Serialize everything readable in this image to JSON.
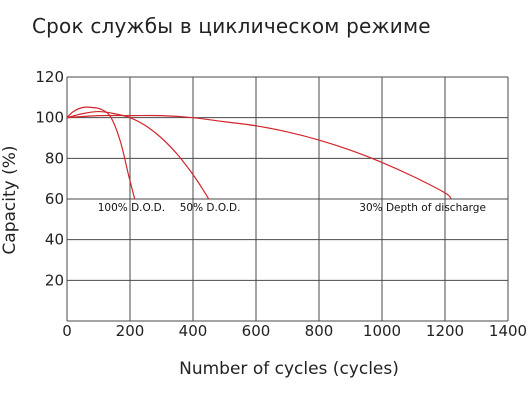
{
  "title": "Срок службы в циклическом режиме",
  "chart_data": {
    "type": "line",
    "title": "Срок службы в циклическом режиме",
    "xlabel": "Number of cycles (cycles)",
    "ylabel": "Capacity (%)",
    "xlim": [
      0,
      1400
    ],
    "ylim": [
      0,
      120
    ],
    "xticks": [
      "0",
      "200",
      "400",
      "600",
      "800",
      "1000",
      "1200",
      "1400"
    ],
    "yticks": [
      "20",
      "40",
      "60",
      "80",
      "100",
      "120"
    ],
    "grid": true,
    "series": [
      {
        "name": "100% D.O.D.",
        "x": [
          0,
          20,
          50,
          80,
          110,
          140,
          170,
          195,
          215
        ],
        "y": [
          100,
          103,
          105,
          105,
          104,
          100,
          88,
          72,
          60
        ]
      },
      {
        "name": "50% D.O.D.",
        "x": [
          0,
          50,
          100,
          150,
          200,
          250,
          300,
          350,
          400,
          430,
          450
        ],
        "y": [
          100,
          102,
          103,
          102,
          100,
          96,
          90,
          82,
          72,
          65,
          60
        ]
      },
      {
        "name": "30% Depth of discharge",
        "x": [
          0,
          100,
          200,
          300,
          400,
          500,
          600,
          700,
          800,
          900,
          1000,
          1100,
          1200,
          1220
        ],
        "y": [
          100,
          101,
          101,
          101,
          100,
          98,
          96,
          93,
          89,
          84,
          78,
          71,
          63,
          60
        ]
      }
    ]
  }
}
